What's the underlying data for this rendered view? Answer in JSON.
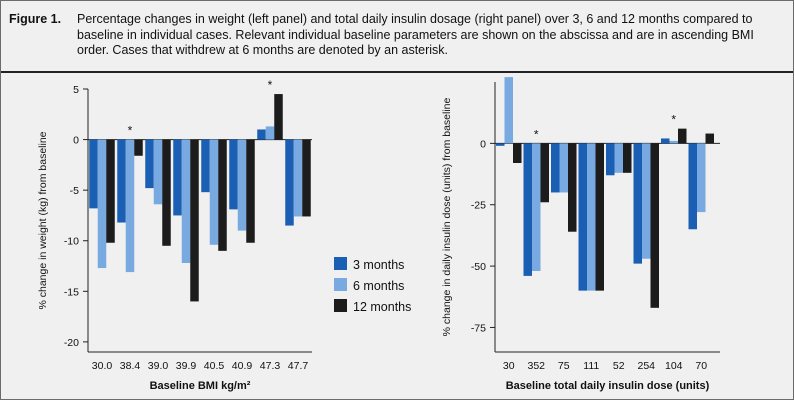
{
  "figure": {
    "label": "Figure 1.",
    "caption": "Percentage changes in weight (left panel) and total daily insulin dosage (right panel) over 3, 6 and 12 months compared to baseline in individual cases. Relevant individual baseline parameters are shown on the abscissa and are in ascending BMI order. Cases that withdrew at 6 months are denoted by an asterisk."
  },
  "colors": {
    "3 months": "#1a5fb4",
    "6 months": "#78a9e0",
    "12 months": "#1c1c1c",
    "axis": "#222222"
  },
  "legend": [
    "3 months",
    "6 months",
    "12 months"
  ],
  "chart_data": [
    {
      "type": "bar",
      "title": "",
      "xlabel": "Baseline BMI kg/m²",
      "ylabel": "% change in weight (kg) from baseline",
      "categories": [
        "30.0",
        "38.4",
        "39.0",
        "39.9",
        "40.5",
        "40.9",
        "47.3",
        "47.7"
      ],
      "ylim": [
        -21,
        5
      ],
      "yticks": [
        5,
        0,
        -5,
        -10,
        -15,
        -20
      ],
      "series": [
        {
          "name": "3 months",
          "values": [
            -6.8,
            -8.2,
            -4.8,
            -7.5,
            -5.2,
            -6.9,
            1.0,
            -8.5
          ]
        },
        {
          "name": "6 months",
          "values": [
            -12.7,
            -13.1,
            -6.4,
            -12.2,
            -10.4,
            -9.0,
            1.3,
            -7.6
          ]
        },
        {
          "name": "12 months",
          "values": [
            -10.2,
            -1.6,
            -10.5,
            -16.0,
            -11.0,
            -10.2,
            4.5,
            -7.6
          ]
        }
      ],
      "withdrew_marker": "*",
      "withdrew_categories": [
        "38.4",
        "47.3"
      ]
    },
    {
      "type": "bar",
      "title": "",
      "xlabel": "Baseline total daily insulin dose (units)",
      "ylabel": "% change in daily insulin dose (units) from baseline",
      "categories": [
        "30",
        "352",
        "75",
        "111",
        "52",
        "254",
        "104",
        "70"
      ],
      "ylim": [
        -85,
        25
      ],
      "yticks": [
        0,
        -25,
        -50,
        -75
      ],
      "series": [
        {
          "name": "3 months",
          "values": [
            -1,
            -54,
            -20,
            -60,
            -13,
            -49,
            2,
            -35
          ]
        },
        {
          "name": "6 months",
          "values": [
            27,
            -52,
            -20,
            -60,
            -12,
            -47,
            1,
            -28
          ]
        },
        {
          "name": "12 months",
          "values": [
            -8,
            -24,
            -36,
            -60,
            -12,
            -67,
            6,
            4
          ]
        }
      ],
      "withdrew_marker": "*",
      "withdrew_categories": [
        "352",
        "104"
      ]
    }
  ]
}
